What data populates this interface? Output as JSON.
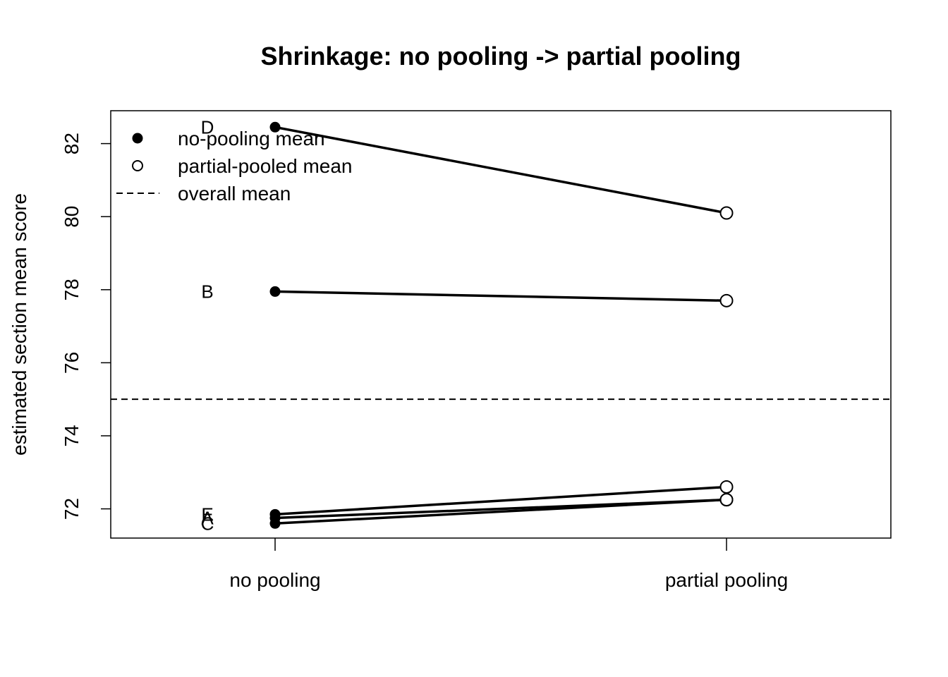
{
  "chart_data": {
    "type": "line",
    "title": "Shrinkage: no pooling -> partial pooling",
    "xlabel": "",
    "ylabel": "estimated section mean score",
    "categories": [
      "no pooling",
      "partial pooling"
    ],
    "ylim": [
      71.2,
      82.9
    ],
    "y_ticks": [
      72,
      74,
      76,
      78,
      80,
      82
    ],
    "grid": false,
    "overall_mean": 75.0,
    "series": [
      {
        "name": "D",
        "values": [
          82.45,
          80.1
        ]
      },
      {
        "name": "B",
        "values": [
          77.95,
          77.7
        ]
      },
      {
        "name": "E",
        "values": [
          71.85,
          72.6
        ]
      },
      {
        "name": "A",
        "values": [
          71.75,
          72.25
        ]
      },
      {
        "name": "C",
        "values": [
          71.6,
          72.25
        ]
      }
    ],
    "legend": {
      "position": "top-left",
      "entries": [
        {
          "label": "no-pooling mean",
          "symbol": "filled-circle"
        },
        {
          "label": "partial-pooled mean",
          "symbol": "open-circle"
        },
        {
          "label": "overall mean",
          "symbol": "dashed-line"
        }
      ]
    },
    "colors": {
      "line": "#000000",
      "background": "#ffffff"
    }
  }
}
